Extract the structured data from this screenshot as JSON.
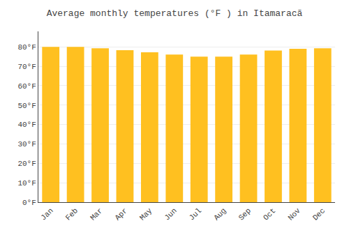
{
  "chart_data": {
    "type": "bar",
    "title": "Average monthly temperatures (°F ) in Itamaracã",
    "categories": [
      "Jan",
      "Feb",
      "Mar",
      "Apr",
      "May",
      "Jun",
      "Jul",
      "Aug",
      "Sep",
      "Oct",
      "Nov",
      "Dec"
    ],
    "values": [
      80.0,
      80.0,
      79.3,
      78.3,
      77.2,
      76.1,
      75.0,
      75.0,
      76.1,
      78.1,
      79.0,
      79.3
    ],
    "color": "#FFC020",
    "ylim": [
      0,
      88
    ],
    "yticks": [
      {
        "value": 0,
        "label": "0°F"
      },
      {
        "value": 10,
        "label": "10°F"
      },
      {
        "value": 20,
        "label": "20°F"
      },
      {
        "value": 30,
        "label": "30°F"
      },
      {
        "value": 40,
        "label": "40°F"
      },
      {
        "value": 50,
        "label": "50°F"
      },
      {
        "value": 60,
        "label": "60°F"
      },
      {
        "value": 70,
        "label": "70°F"
      },
      {
        "value": 80,
        "label": "80°F"
      }
    ],
    "grid": true
  }
}
